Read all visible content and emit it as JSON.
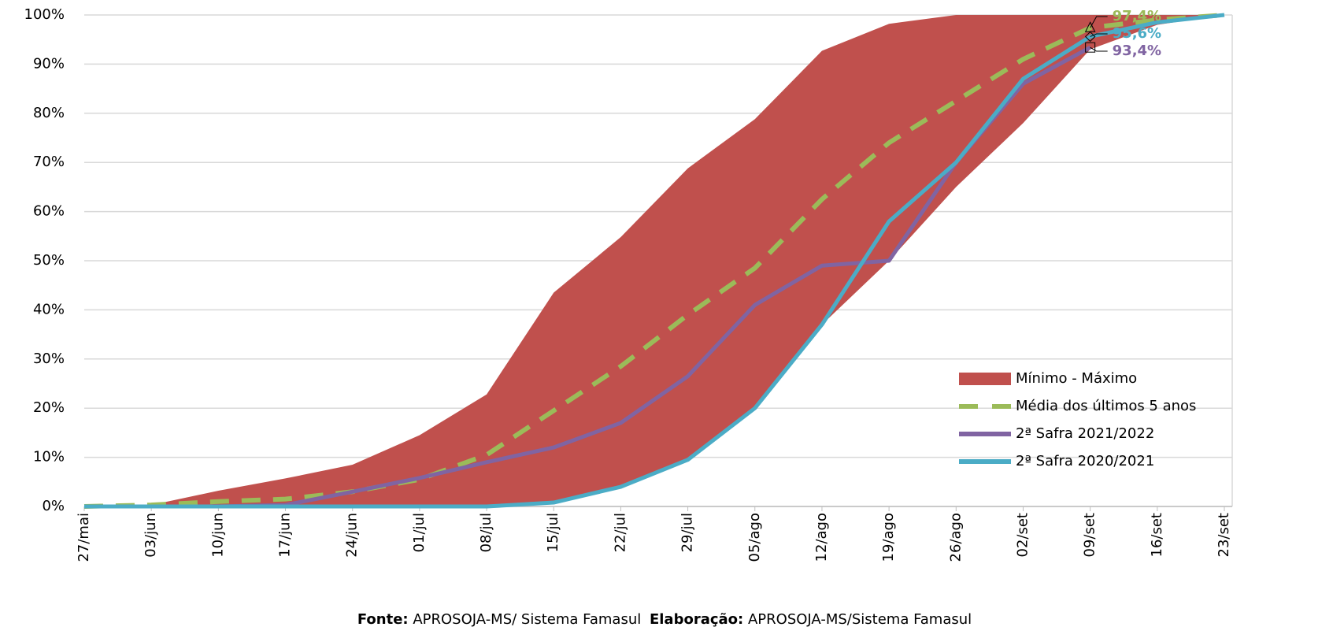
{
  "chart_data": {
    "type": "line",
    "categories": [
      "27/mai",
      "03/jun",
      "10/jun",
      "17/jun",
      "24/jun",
      "01/jul",
      "08/jul",
      "15/jul",
      "22/jul",
      "29/jul",
      "05/ago",
      "12/ago",
      "19/ago",
      "26/ago",
      "02/set",
      "09/set",
      "16/set",
      "23/set"
    ],
    "series": [
      {
        "name": "Mínimo - Máximo",
        "color": "#c0504d",
        "kind": "range",
        "values": [
          0,
          0.3,
          3.2,
          5.7,
          8.5,
          14.5,
          22.8,
          43.5,
          54.8,
          68.8,
          78.8,
          92.7,
          98.2,
          100,
          100,
          100,
          100,
          100
        ],
        "low": [
          0,
          0,
          0,
          0,
          0,
          0,
          0,
          0.8,
          4,
          9.5,
          20,
          37,
          50,
          65,
          78,
          93,
          98,
          100
        ]
      },
      {
        "name": "Média dos últimos 5 anos",
        "color": "#9bbb59",
        "dash": true,
        "values": [
          0,
          0.3,
          1,
          1.5,
          3,
          5.5,
          10.5,
          19.5,
          28.5,
          39,
          48.5,
          62.5,
          74,
          82.5,
          91,
          97.4,
          99,
          100
        ],
        "label_index": 15,
        "value_labels": {
          "15": "97,4%"
        },
        "marker": "triangle"
      },
      {
        "name": "2ª Safra 2021/2022",
        "color": "#8064a2",
        "values": [
          0,
          0,
          0,
          0.3,
          3,
          5.8,
          9,
          12,
          17,
          26.5,
          41,
          49,
          50,
          70,
          86,
          93.4,
          null,
          null
        ],
        "label_index": 15,
        "value_labels": {
          "15": "93,4%"
        },
        "marker": "square"
      },
      {
        "name": "2ª Safra 2020/2021",
        "color": "#4bacc6",
        "values": [
          0,
          0,
          0,
          0,
          0,
          0,
          0,
          0.8,
          4,
          9.5,
          20,
          37,
          58,
          70,
          87,
          95.6,
          98.5,
          100
        ],
        "label_index": 15,
        "value_labels": {
          "15": "95,6%"
        },
        "marker": "diamond"
      }
    ],
    "ylim": [
      0,
      100
    ],
    "yticks": [
      {
        "value": 0,
        "label": "0%"
      },
      {
        "value": 10,
        "label": "10%"
      },
      {
        "value": 20,
        "label": "20%"
      },
      {
        "value": 30,
        "label": "30%"
      },
      {
        "value": 40,
        "label": "40%"
      },
      {
        "value": 50,
        "label": "50%"
      },
      {
        "value": 60,
        "label": "60%"
      },
      {
        "value": 70,
        "label": "70%"
      },
      {
        "value": 80,
        "label": "80%"
      },
      {
        "value": 90,
        "label": "90%"
      },
      {
        "value": 100,
        "label": "100%"
      }
    ],
    "grid": true,
    "legend": "lower right"
  },
  "footer": {
    "source_label": "Fonte:",
    "source": "APROSOJA-MS/ Sistema Famasul",
    "author_label": "Elaboração:",
    "author": "APROSOJA-MS/Sistema Famasul"
  }
}
